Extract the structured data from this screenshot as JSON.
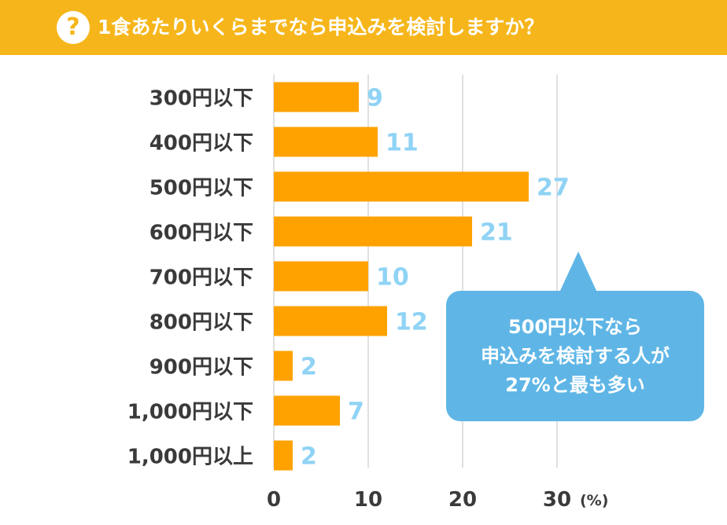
{
  "title": "1食あたりいくらまでなら申込みを検討しますか？",
  "header_icon": "question-mark-icon",
  "header_icon_glyph": "?",
  "colors": {
    "header": "#f6b61b",
    "bar": "#ffa200",
    "value_label": "#8fd3f5",
    "callout": "#5fb6e6",
    "grid": "#d5d5d5",
    "text": "#3a3a3a"
  },
  "chart_data": {
    "type": "bar",
    "orientation": "horizontal",
    "categories": [
      "300円以下",
      "400円以下",
      "500円以下",
      "600円以下",
      "700円以下",
      "800円以下",
      "900円以下",
      "1,000円以下",
      "1,000円以上"
    ],
    "values": [
      9,
      11,
      27,
      21,
      10,
      12,
      2,
      7,
      2
    ],
    "xlim": [
      0,
      30
    ],
    "xticks": [
      "0",
      "10",
      "20",
      "30"
    ],
    "xunit": "(%)",
    "grid": true
  },
  "callout": {
    "lines": [
      "500円以下なら",
      "申込みを検討する人が",
      "27%と最も多い"
    ]
  }
}
